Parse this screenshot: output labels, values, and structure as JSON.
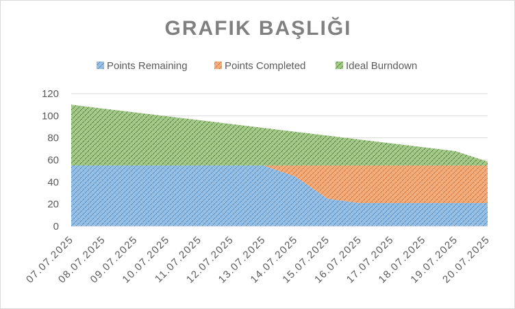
{
  "chart_data": {
    "type": "area",
    "stacked": true,
    "title": "GRAFIK BAŞLIĞI",
    "xlabel": "",
    "ylabel": "",
    "categories": [
      "07.07.2025",
      "08.07.2025",
      "09.07.2025",
      "10.07.2025",
      "11.07.2025",
      "12.07.2025",
      "13.07.2025",
      "14.07.2025",
      "15.07.2025",
      "16.07.2025",
      "17.07.2025",
      "18.07.2025",
      "19.07.2025",
      "20.07.2025"
    ],
    "series": [
      {
        "name": "Points Remaining",
        "color": "#9dc3e6",
        "pattern_color": "#2e75b6",
        "values": [
          55,
          55,
          55,
          55,
          55,
          55,
          55,
          45,
          25,
          21,
          21,
          21,
          21,
          21
        ]
      },
      {
        "name": "Points Completed",
        "color": "#f4b183",
        "pattern_color": "#c55a11",
        "values": [
          0,
          0,
          0,
          0,
          0,
          0,
          0,
          10,
          30,
          34,
          34,
          34,
          34,
          34
        ]
      },
      {
        "name": "Ideal Burndown",
        "color": "#a9d18e",
        "pattern_color": "#375623",
        "values": [
          55,
          51.5,
          48,
          44.5,
          41,
          37.5,
          34,
          30.5,
          27,
          23.5,
          20,
          16.5,
          13,
          3.5
        ]
      }
    ],
    "ylim": [
      0,
      120
    ],
    "yticks": [
      0,
      20,
      40,
      60,
      80,
      100,
      120
    ],
    "grid": true,
    "legend": "top"
  }
}
